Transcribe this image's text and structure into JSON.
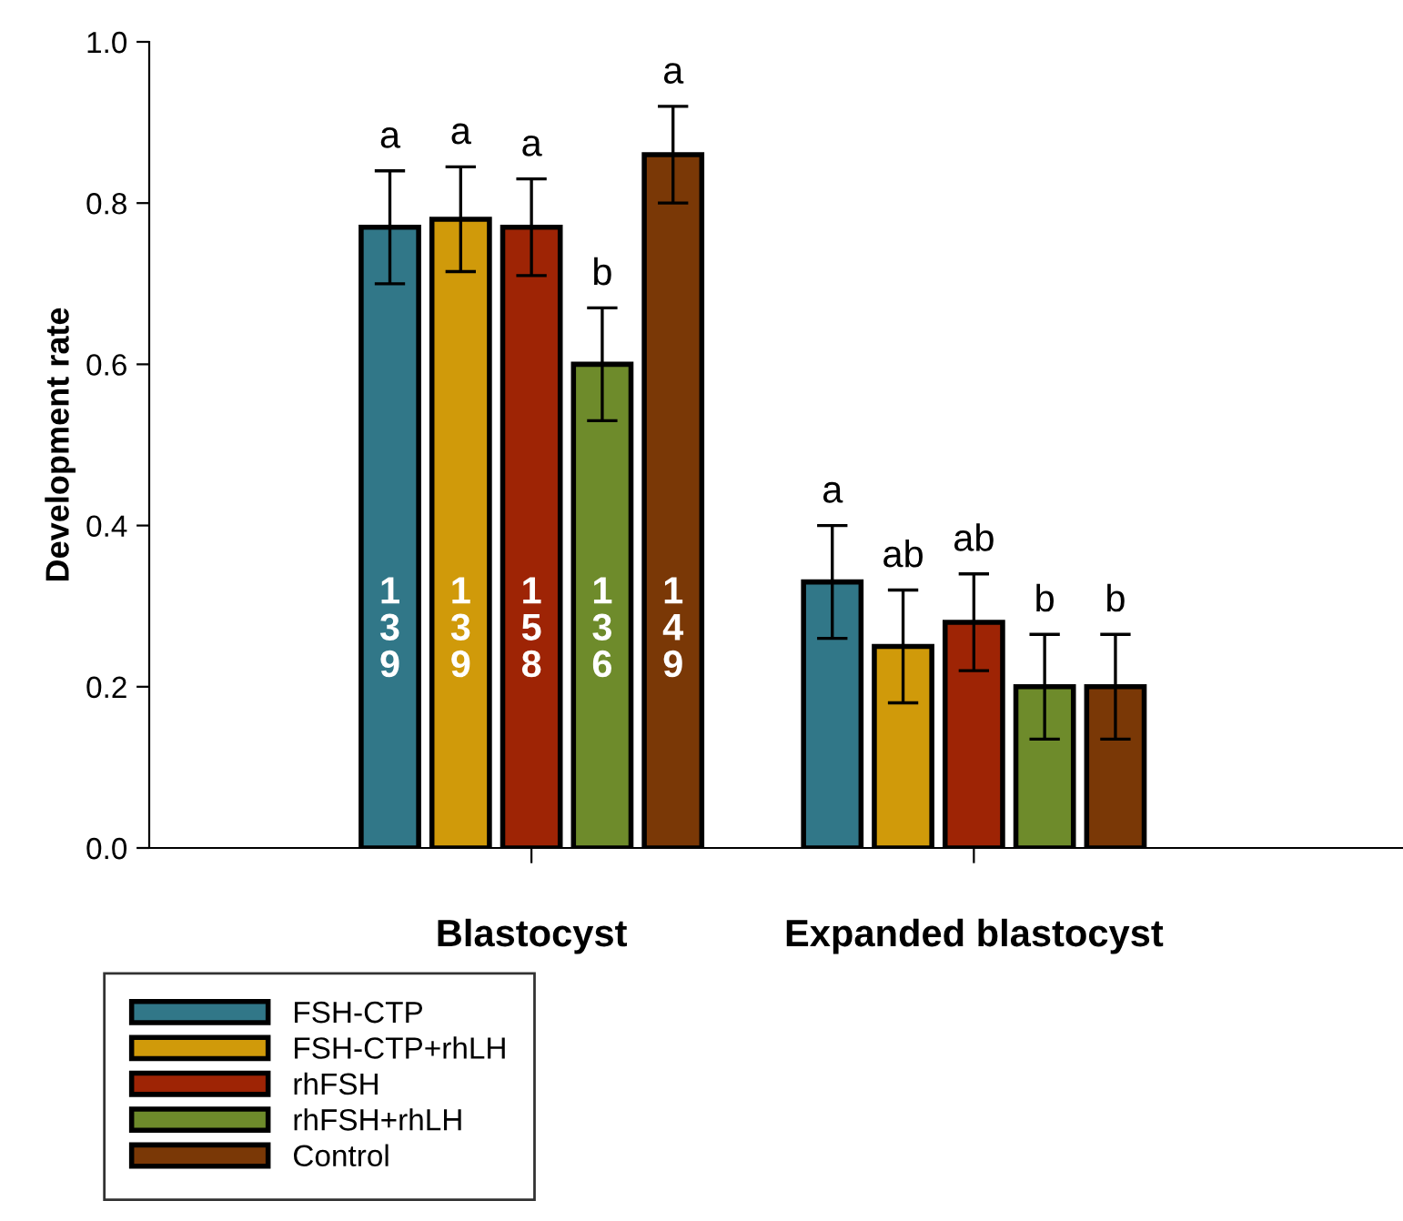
{
  "chart_data": {
    "type": "bar",
    "ylabel": "Development rate",
    "categories": [
      "Blastocyst",
      "Expanded blastocyst"
    ],
    "series": [
      {
        "name": "FSH-CTP",
        "color": "#317788",
        "values": [
          0.77,
          0.33
        ],
        "errors": [
          0.07,
          0.07
        ],
        "value_labels": [
          "a",
          "a"
        ]
      },
      {
        "name": "FSH-CTP+rhLH",
        "color": "#d09a0a",
        "values": [
          0.78,
          0.25
        ],
        "errors": [
          0.065,
          0.07
        ],
        "value_labels": [
          "a",
          "ab"
        ]
      },
      {
        "name": "rhFSH",
        "color": "#9e2405",
        "values": [
          0.77,
          0.28
        ],
        "errors": [
          0.06,
          0.06
        ],
        "value_labels": [
          "a",
          "ab"
        ]
      },
      {
        "name": "rhFSH+rhLH",
        "color": "#6e8b2b",
        "values": [
          0.6,
          0.2
        ],
        "errors": [
          0.07,
          0.065
        ],
        "value_labels": [
          "b",
          "b"
        ]
      },
      {
        "name": "Control",
        "color": "#7a3806",
        "values": [
          0.86,
          0.2
        ],
        "errors": [
          0.06,
          0.065
        ],
        "value_labels": [
          "a",
          "b"
        ]
      }
    ],
    "ylim": [
      0,
      1
    ],
    "yticks": [
      {
        "value": 0,
        "label": "0.0"
      },
      0.2,
      0.4,
      0.6,
      0.8,
      {
        "value": 1,
        "label": "1.0"
      }
    ],
    "grid": false,
    "legend": "bottom left",
    "annotations": [
      "139",
      "139",
      "158",
      "136",
      "149"
    ]
  }
}
